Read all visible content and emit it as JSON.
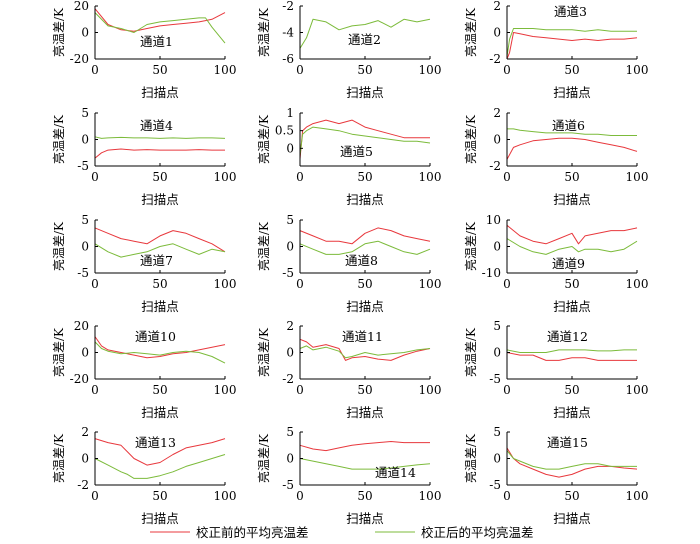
{
  "colors": {
    "before": "#e8383d",
    "after": "#7cbb3b",
    "axis": "#000000"
  },
  "legend": [
    {
      "key": "before",
      "label": "校正前的平均亮温差"
    },
    {
      "key": "after",
      "label": "校正后的平均亮温差"
    }
  ],
  "chart_data": [
    {
      "type": "line",
      "title": "通道1",
      "xlabel": "扫描点",
      "ylabel": "亮温差/K",
      "xlim": [
        0,
        100
      ],
      "ylim": [
        -20,
        20
      ],
      "xticks": [
        0,
        50,
        100
      ],
      "yticks": [
        -20,
        0,
        20
      ],
      "x": [
        0,
        10,
        20,
        30,
        40,
        50,
        60,
        70,
        80,
        85,
        90,
        100
      ],
      "series": [
        {
          "name": "校正前的平均亮温差",
          "color_key": "before",
          "values": [
            18,
            6,
            2,
            1,
            3,
            5,
            6,
            7,
            8,
            9,
            10,
            15
          ]
        },
        {
          "name": "校正后的平均亮温差",
          "color_key": "after",
          "values": [
            15,
            5,
            3,
            0,
            6,
            8,
            9,
            10,
            11,
            11,
            4,
            -8
          ]
        }
      ]
    },
    {
      "type": "line",
      "title": "通道2",
      "xlabel": "扫描点",
      "ylabel": "亮温差/K",
      "xlim": [
        0,
        100
      ],
      "ylim": [
        -6,
        -2
      ],
      "xticks": [
        0,
        50,
        100
      ],
      "yticks": [
        -6,
        -4,
        -2
      ],
      "x": [
        0,
        5,
        10,
        20,
        30,
        40,
        50,
        60,
        70,
        80,
        90,
        100
      ],
      "series": [
        {
          "name": "校正后的平均亮温差",
          "color_key": "after",
          "values": [
            -5.2,
            -4.4,
            -3.0,
            -3.2,
            -3.8,
            -3.5,
            -3.4,
            -3.1,
            -3.6,
            -3.0,
            -3.2,
            -3.0
          ]
        }
      ]
    },
    {
      "type": "line",
      "title": "通道3",
      "xlabel": "扫描点",
      "ylabel": "亮温差/K",
      "xlim": [
        0,
        100
      ],
      "ylim": [
        -2,
        2
      ],
      "xticks": [
        0,
        50,
        100
      ],
      "yticks": [
        -2,
        0,
        2
      ],
      "x": [
        0,
        2,
        5,
        10,
        20,
        30,
        40,
        50,
        60,
        70,
        80,
        90,
        100
      ],
      "series": [
        {
          "name": "校正前的平均亮温差",
          "color_key": "before",
          "values": [
            -2,
            -1.5,
            0,
            -0.1,
            -0.3,
            -0.4,
            -0.5,
            -0.6,
            -0.5,
            -0.6,
            -0.5,
            -0.5,
            -0.4
          ]
        },
        {
          "name": "校正后的平均亮温差",
          "color_key": "after",
          "values": [
            -1.8,
            -0.5,
            0.3,
            0.3,
            0.3,
            0.2,
            0.2,
            0.2,
            0.1,
            0.2,
            0.1,
            0.1,
            0.1
          ]
        }
      ]
    },
    {
      "type": "line",
      "title": "通道4",
      "xlabel": "扫描点",
      "ylabel": "亮温差/K",
      "xlim": [
        0,
        100
      ],
      "ylim": [
        -5,
        5
      ],
      "xticks": [
        0,
        50,
        100
      ],
      "yticks": [
        -5,
        0,
        5
      ],
      "x": [
        0,
        5,
        10,
        20,
        30,
        40,
        50,
        60,
        70,
        80,
        90,
        100
      ],
      "series": [
        {
          "name": "校正前的平均亮温差",
          "color_key": "before",
          "values": [
            -3.5,
            -2.5,
            -2.0,
            -1.8,
            -2.0,
            -1.9,
            -2.0,
            -2.0,
            -2.0,
            -1.9,
            -2.0,
            -2.0
          ]
        },
        {
          "name": "校正后的平均亮温差",
          "color_key": "after",
          "values": [
            0.5,
            0.2,
            0.3,
            0.4,
            0.3,
            0.3,
            0.2,
            0.3,
            0.2,
            0.3,
            0.3,
            0.2
          ]
        }
      ]
    },
    {
      "type": "line",
      "title": "通道5",
      "xlabel": "扫描点",
      "ylabel": "亮温差/K",
      "xlim": [
        0,
        100
      ],
      "ylim": [
        -0.5,
        1
      ],
      "xticks": [
        0,
        50,
        100
      ],
      "yticks": [
        0,
        0.5,
        1
      ],
      "x": [
        0,
        2,
        5,
        10,
        20,
        30,
        40,
        50,
        60,
        70,
        80,
        90,
        100
      ],
      "series": [
        {
          "name": "校正前的平均亮温差",
          "color_key": "before",
          "values": [
            -0.3,
            0.5,
            0.6,
            0.7,
            0.8,
            0.7,
            0.8,
            0.6,
            0.5,
            0.4,
            0.3,
            0.3,
            0.3
          ]
        },
        {
          "name": "校正后的平均亮温差",
          "color_key": "after",
          "values": [
            -0.2,
            0.4,
            0.5,
            0.6,
            0.55,
            0.5,
            0.4,
            0.35,
            0.3,
            0.25,
            0.2,
            0.2,
            0.15
          ]
        }
      ]
    },
    {
      "type": "line",
      "title": "通道6",
      "xlabel": "扫描点",
      "ylabel": "亮温差/K",
      "xlim": [
        0,
        100
      ],
      "ylim": [
        -2,
        2
      ],
      "xticks": [
        0,
        50,
        100
      ],
      "yticks": [
        -2,
        0,
        2
      ],
      "x": [
        0,
        5,
        10,
        20,
        30,
        40,
        50,
        60,
        70,
        80,
        90,
        100
      ],
      "series": [
        {
          "name": "校正前的平均亮温差",
          "color_key": "before",
          "values": [
            -1.5,
            -0.6,
            -0.4,
            -0.1,
            0.0,
            0.1,
            0.1,
            0.0,
            -0.2,
            -0.4,
            -0.6,
            -0.9
          ]
        },
        {
          "name": "校正后的平均亮温差",
          "color_key": "after",
          "values": [
            0.8,
            0.8,
            0.7,
            0.6,
            0.5,
            0.5,
            0.5,
            0.4,
            0.4,
            0.3,
            0.3,
            0.3
          ]
        }
      ]
    },
    {
      "type": "line",
      "title": "通道7",
      "xlabel": "扫描点",
      "ylabel": "亮温差/K",
      "xlim": [
        0,
        100
      ],
      "ylim": [
        -5,
        5
      ],
      "xticks": [
        0,
        50,
        100
      ],
      "yticks": [
        -5,
        0,
        5
      ],
      "x": [
        0,
        10,
        20,
        30,
        40,
        50,
        60,
        70,
        80,
        90,
        100
      ],
      "series": [
        {
          "name": "校正前的平均亮温差",
          "color_key": "before",
          "values": [
            3.5,
            2.5,
            1.5,
            1.0,
            0.5,
            2.0,
            3.0,
            2.5,
            1.5,
            0.5,
            -1.0
          ]
        },
        {
          "name": "校正后的平均亮温差",
          "color_key": "after",
          "values": [
            0.5,
            -1.0,
            -2.0,
            -1.5,
            -1.0,
            0.0,
            0.5,
            -0.5,
            -1.5,
            -0.5,
            -1.0
          ]
        }
      ]
    },
    {
      "type": "line",
      "title": "通道8",
      "xlabel": "扫描点",
      "ylabel": "亮温差/K",
      "xlim": [
        0,
        100
      ],
      "ylim": [
        -5,
        5
      ],
      "xticks": [
        0,
        50,
        100
      ],
      "yticks": [
        -5,
        0,
        5
      ],
      "x": [
        0,
        10,
        20,
        30,
        40,
        50,
        60,
        70,
        80,
        90,
        100
      ],
      "series": [
        {
          "name": "校正前的平均亮温差",
          "color_key": "before",
          "values": [
            3.0,
            2.0,
            1.0,
            1.0,
            0.5,
            2.5,
            3.5,
            3.0,
            2.0,
            1.5,
            1.0
          ]
        },
        {
          "name": "校正后的平均亮温差",
          "color_key": "after",
          "values": [
            0.5,
            -0.5,
            -1.5,
            -1.5,
            -1.0,
            0.5,
            1.0,
            0.0,
            -1.0,
            -1.5,
            -0.5
          ]
        }
      ]
    },
    {
      "type": "line",
      "title": "通道9",
      "xlabel": "扫描点",
      "ylabel": "亮温差/K",
      "xlim": [
        0,
        100
      ],
      "ylim": [
        -10,
        10
      ],
      "xticks": [
        0,
        50,
        100
      ],
      "yticks": [
        -10,
        0,
        10
      ],
      "x": [
        0,
        10,
        20,
        30,
        40,
        50,
        55,
        60,
        70,
        80,
        90,
        100
      ],
      "series": [
        {
          "name": "校正前的平均亮温差",
          "color_key": "before",
          "values": [
            8,
            4,
            2,
            1,
            3,
            5,
            1,
            4,
            5,
            6,
            6,
            7
          ]
        },
        {
          "name": "校正后的平均亮温差",
          "color_key": "after",
          "values": [
            3,
            0,
            -2,
            -3,
            -1,
            0,
            -2,
            -1,
            -1,
            -2,
            -1,
            2
          ]
        }
      ]
    },
    {
      "type": "line",
      "title": "通道10",
      "xlabel": "扫描点",
      "ylabel": "亮温差/K",
      "xlim": [
        0,
        100
      ],
      "ylim": [
        -20,
        20
      ],
      "xticks": [
        0,
        50,
        100
      ],
      "yticks": [
        -20,
        0,
        20
      ],
      "x": [
        0,
        5,
        10,
        20,
        30,
        40,
        50,
        60,
        70,
        80,
        90,
        100
      ],
      "series": [
        {
          "name": "校正前的平均亮温差",
          "color_key": "before",
          "values": [
            12,
            5,
            2,
            0,
            -2,
            -4,
            -3,
            -1,
            0,
            2,
            4,
            6
          ]
        },
        {
          "name": "校正后的平均亮温差",
          "color_key": "after",
          "values": [
            8,
            3,
            1,
            -1,
            0,
            -1,
            -2,
            0,
            1,
            0,
            -3,
            -8
          ]
        }
      ]
    },
    {
      "type": "line",
      "title": "通道11",
      "xlabel": "扫描点",
      "ylabel": "亮温差/K",
      "xlim": [
        0,
        100
      ],
      "ylim": [
        -2,
        2
      ],
      "xticks": [
        0,
        50,
        100
      ],
      "yticks": [
        -2,
        0,
        2
      ],
      "x": [
        0,
        5,
        10,
        20,
        30,
        35,
        40,
        50,
        60,
        70,
        80,
        90,
        100
      ],
      "series": [
        {
          "name": "校正前的平均亮温差",
          "color_key": "before",
          "values": [
            1.0,
            0.8,
            0.4,
            0.6,
            0.3,
            -0.6,
            -0.4,
            -0.3,
            -0.5,
            -0.6,
            -0.2,
            0.1,
            0.3
          ]
        },
        {
          "name": "校正后的平均亮温差",
          "color_key": "after",
          "values": [
            0.3,
            0.5,
            0.2,
            0.4,
            0.1,
            -0.4,
            -0.3,
            0.0,
            -0.2,
            -0.1,
            0.0,
            0.2,
            0.3
          ]
        }
      ]
    },
    {
      "type": "line",
      "title": "通道12",
      "xlabel": "扫描点",
      "ylabel": "亮温差/K",
      "xlim": [
        0,
        100
      ],
      "ylim": [
        -5,
        5
      ],
      "xticks": [
        0,
        50,
        100
      ],
      "yticks": [
        -5,
        0,
        5
      ],
      "x": [
        0,
        10,
        20,
        30,
        40,
        50,
        60,
        70,
        80,
        90,
        100
      ],
      "series": [
        {
          "name": "校正前的平均亮温差",
          "color_key": "before",
          "values": [
            0.0,
            -0.5,
            -0.5,
            -1.5,
            -1.5,
            -1.0,
            -1.0,
            -1.5,
            -1.5,
            -1.5,
            -1.5
          ]
        },
        {
          "name": "校正后的平均亮温差",
          "color_key": "after",
          "values": [
            0.5,
            0.0,
            0.0,
            0.0,
            0.5,
            0.5,
            0.5,
            0.3,
            0.3,
            0.5,
            0.5
          ]
        }
      ]
    },
    {
      "type": "line",
      "title": "通道13",
      "xlabel": "扫描点",
      "ylabel": "亮温差/K",
      "xlim": [
        0,
        100
      ],
      "ylim": [
        -2,
        2
      ],
      "xticks": [
        0,
        50,
        100
      ],
      "yticks": [
        -2,
        0,
        2
      ],
      "x": [
        0,
        10,
        20,
        25,
        30,
        40,
        50,
        60,
        70,
        80,
        90,
        100
      ],
      "series": [
        {
          "name": "校正前的平均亮温差",
          "color_key": "before",
          "values": [
            1.5,
            1.2,
            1.0,
            0.5,
            0.0,
            -0.5,
            -0.3,
            0.3,
            0.8,
            1.0,
            1.2,
            1.5
          ]
        },
        {
          "name": "校正后的平均亮温差",
          "color_key": "after",
          "values": [
            0.0,
            -0.5,
            -1.0,
            -1.2,
            -1.5,
            -1.5,
            -1.3,
            -1.0,
            -0.6,
            -0.3,
            0.0,
            0.3
          ]
        }
      ]
    },
    {
      "type": "line",
      "title": "通道14",
      "xlabel": "扫描点",
      "ylabel": "亮温差/K",
      "xlim": [
        0,
        100
      ],
      "ylim": [
        -5,
        5
      ],
      "xticks": [
        0,
        50,
        100
      ],
      "yticks": [
        -5,
        0,
        5
      ],
      "x": [
        0,
        10,
        20,
        30,
        40,
        50,
        60,
        70,
        80,
        90,
        100
      ],
      "series": [
        {
          "name": "校正前的平均亮温差",
          "color_key": "before",
          "values": [
            2.5,
            1.8,
            1.5,
            2.0,
            2.5,
            2.8,
            3.0,
            3.2,
            3.0,
            3.0,
            3.0
          ]
        },
        {
          "name": "校正后的平均亮温差",
          "color_key": "after",
          "values": [
            0.0,
            -0.5,
            -1.0,
            -1.5,
            -2.0,
            -2.0,
            -2.0,
            -1.8,
            -1.5,
            -1.2,
            -1.0
          ]
        }
      ]
    },
    {
      "type": "line",
      "title": "通道15",
      "xlabel": "扫描点",
      "ylabel": "亮温差/K",
      "xlim": [
        0,
        100
      ],
      "ylim": [
        -5,
        5
      ],
      "xticks": [
        0,
        50,
        100
      ],
      "yticks": [
        -5,
        0,
        5
      ],
      "x": [
        0,
        5,
        10,
        20,
        30,
        40,
        50,
        60,
        70,
        80,
        90,
        100
      ],
      "series": [
        {
          "name": "校正前的平均亮温差",
          "color_key": "before",
          "values": [
            2.0,
            0.0,
            -1.0,
            -2.0,
            -3.0,
            -3.5,
            -3.0,
            -2.0,
            -1.5,
            -1.5,
            -1.8,
            -2.0
          ]
        },
        {
          "name": "校正后的平均亮温差",
          "color_key": "after",
          "values": [
            1.5,
            0.0,
            -0.5,
            -1.5,
            -2.0,
            -2.0,
            -1.5,
            -1.0,
            -1.0,
            -1.5,
            -1.5,
            -1.5
          ]
        }
      ]
    }
  ]
}
